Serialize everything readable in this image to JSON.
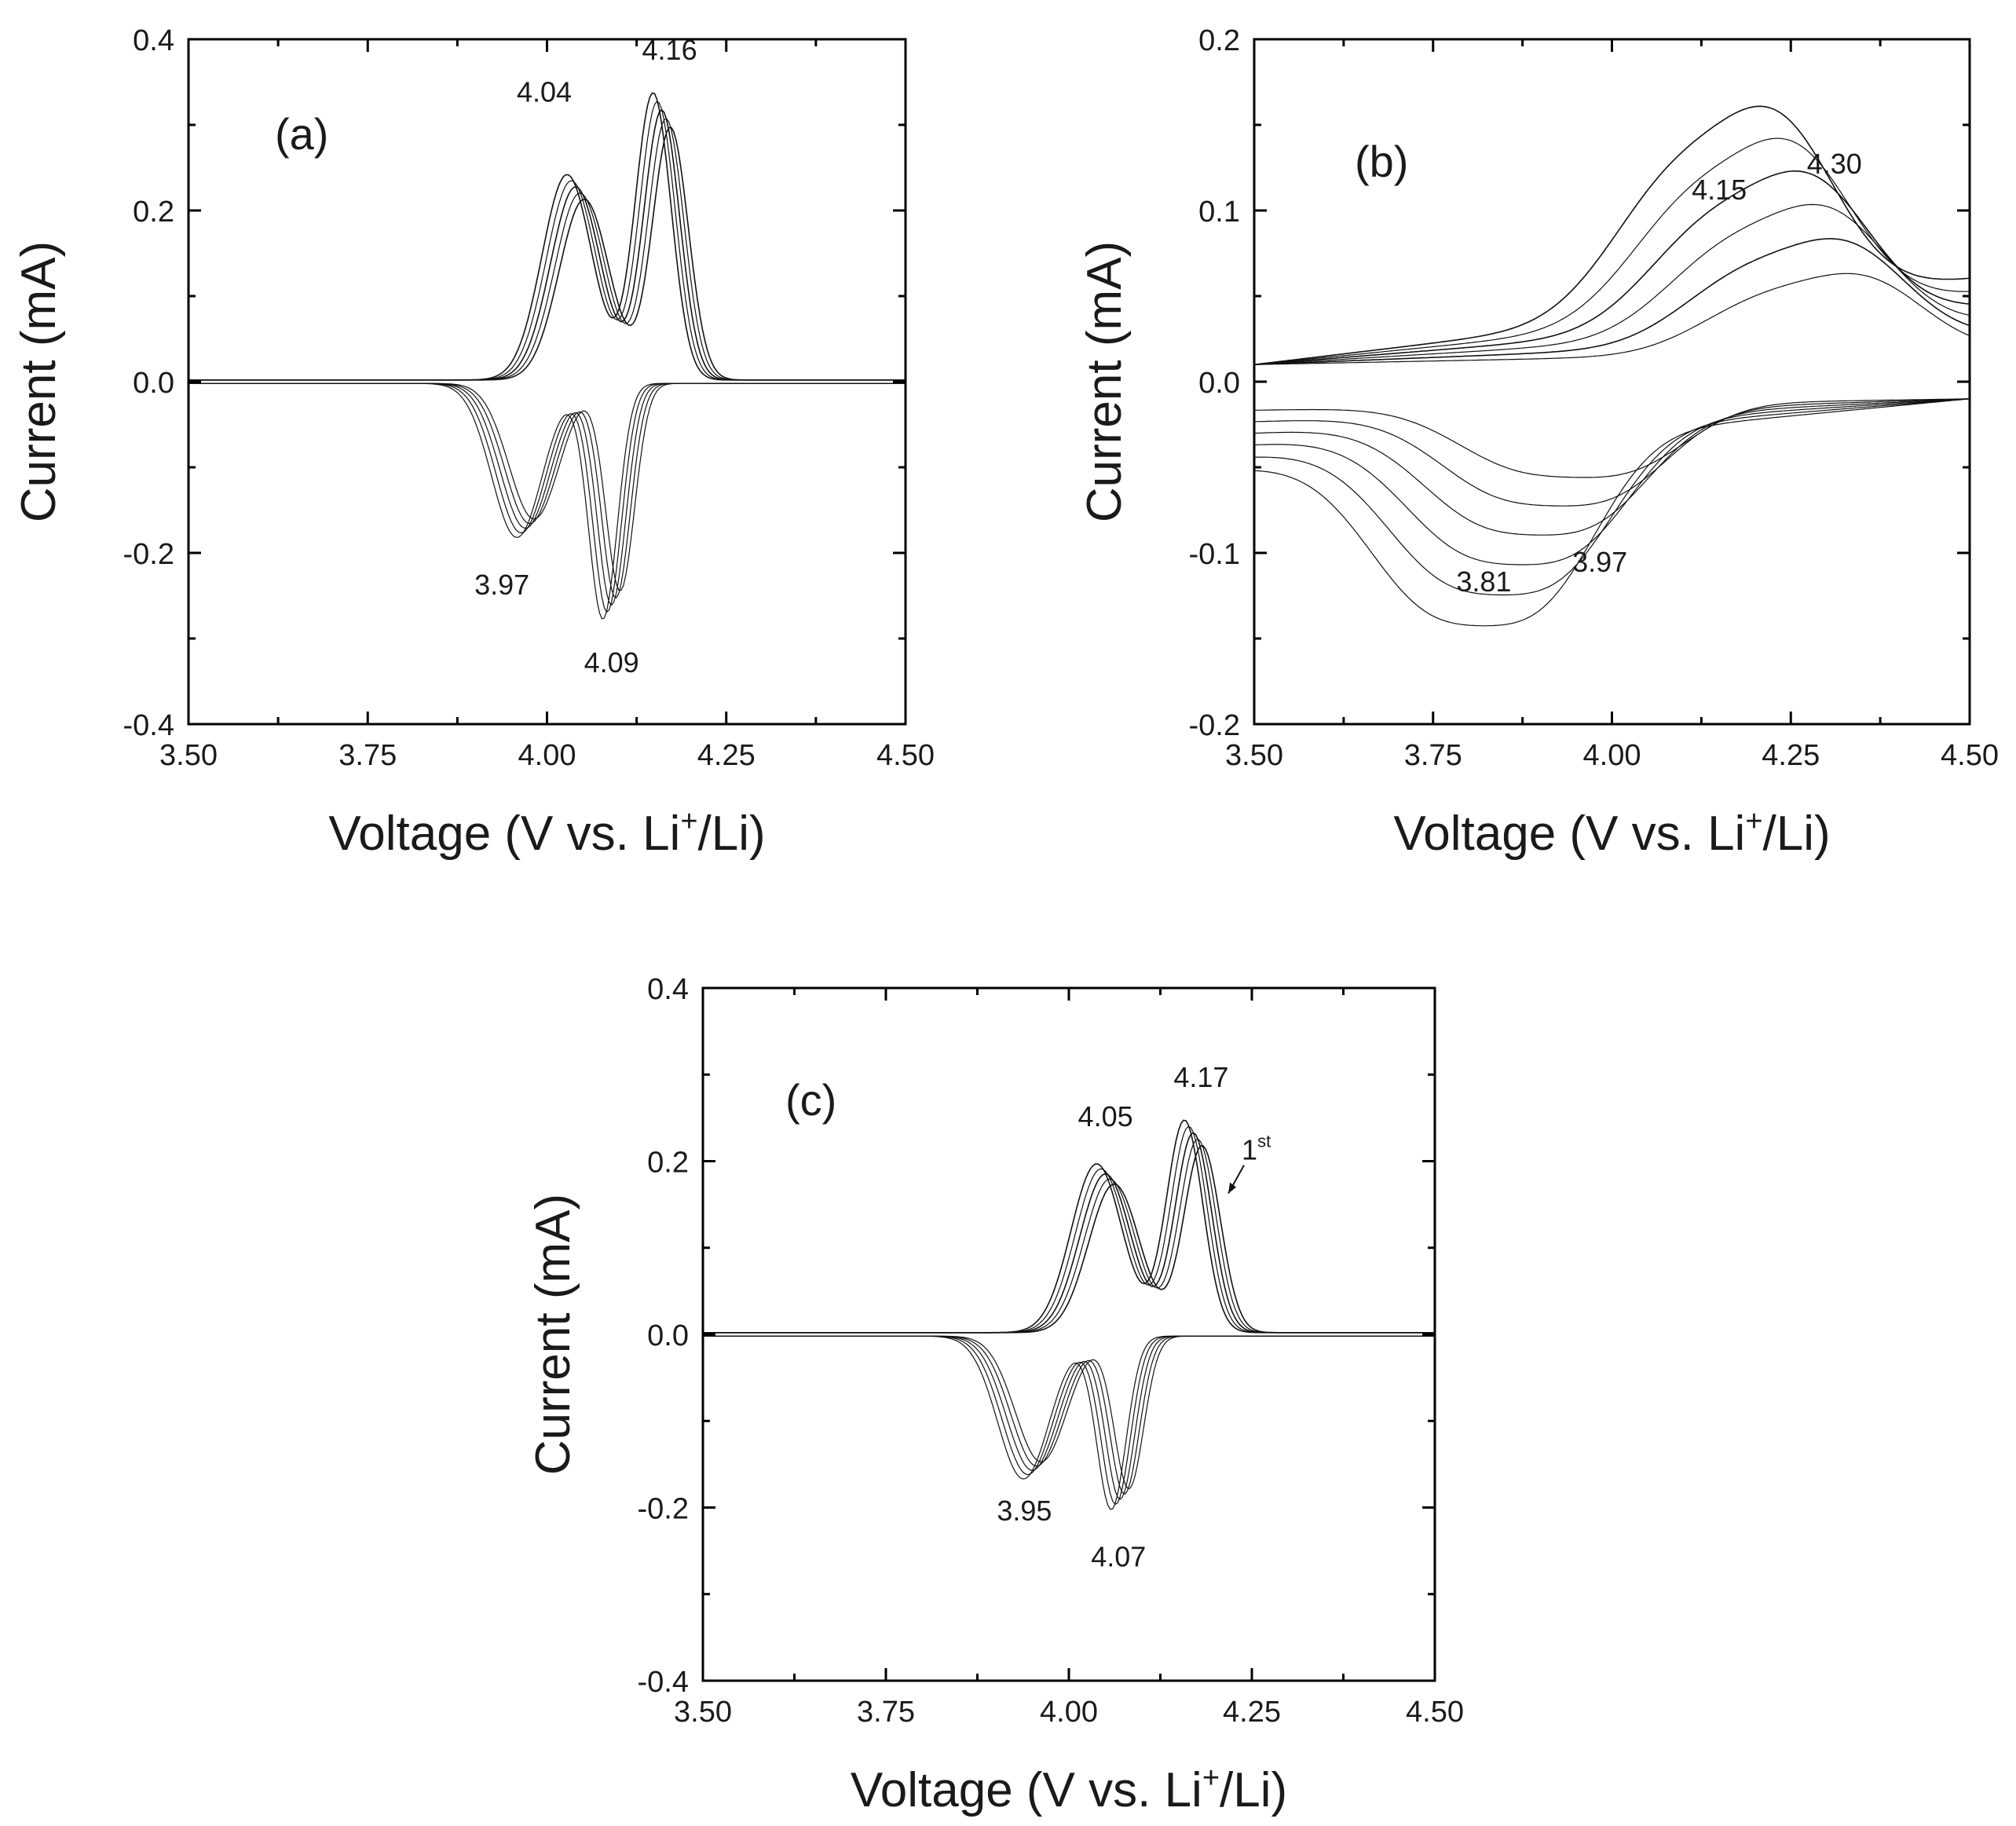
{
  "chart_data": [
    {
      "type": "line",
      "panel_label": "(a)",
      "xlabel": "Voltage (V vs. Li",
      "xlabel_sup": "+",
      "xlabel_tail": "/Li)",
      "ylabel": "Current (mA)",
      "xlim": [
        3.5,
        4.5
      ],
      "ylim": [
        -0.4,
        0.4
      ],
      "xticks": [
        "3.50",
        "3.75",
        "4.00",
        "4.25",
        "4.50"
      ],
      "yticks": [
        "-0.4",
        "-0.2",
        "0.0",
        "0.2",
        "0.4"
      ],
      "anodic_peaks": [
        {
          "label": "4.04",
          "x": 4.04,
          "y": 0.24
        },
        {
          "label": "4.16",
          "x": 4.16,
          "y": 0.335
        }
      ],
      "cathodic_peaks": [
        {
          "label": "3.97",
          "x": 3.97,
          "y": -0.18
        },
        {
          "label": "4.09",
          "x": 4.09,
          "y": -0.275
        }
      ],
      "cycles": 5
    },
    {
      "type": "line",
      "panel_label": "(b)",
      "xlabel": "Voltage (V vs. Li",
      "xlabel_sup": "+",
      "xlabel_tail": "/Li)",
      "ylabel": "Current (mA)",
      "xlim": [
        3.5,
        4.5
      ],
      "ylim": [
        -0.2,
        0.2
      ],
      "xticks": [
        "3.50",
        "3.75",
        "4.00",
        "4.25",
        "4.50"
      ],
      "yticks": [
        "-0.2",
        "-0.1",
        "0.0",
        "0.1",
        "0.2"
      ],
      "anodic_peaks": [
        {
          "label": "4.15",
          "x": 4.15,
          "y": 0.088
        },
        {
          "label": "4.30",
          "x": 4.3,
          "y": 0.101
        }
      ],
      "cathodic_peaks": [
        {
          "label": "3.81",
          "x": 3.81,
          "y": -0.095
        },
        {
          "label": "3.97",
          "x": 3.97,
          "y": -0.088
        }
      ],
      "cycles": 6
    },
    {
      "type": "line",
      "panel_label": "(c)",
      "xlabel": "Voltage (V vs. Li",
      "xlabel_sup": "+",
      "xlabel_tail": "/Li)",
      "ylabel": "Current (mA)",
      "xlim": [
        3.5,
        4.5
      ],
      "ylim": [
        -0.4,
        0.4
      ],
      "xticks": [
        "3.50",
        "3.75",
        "4.00",
        "4.25",
        "4.50"
      ],
      "yticks": [
        "-0.4",
        "-0.2",
        "0.0",
        "0.2",
        "0.4"
      ],
      "anodic_peaks": [
        {
          "label": "4.05",
          "x": 4.05,
          "y": 0.195
        },
        {
          "label": "4.17",
          "x": 4.17,
          "y": 0.245
        }
      ],
      "cathodic_peaks": [
        {
          "label": "3.95",
          "x": 3.95,
          "y": -0.165
        },
        {
          "label": "4.07",
          "x": 4.07,
          "y": -0.2
        }
      ],
      "first_cycle_label": "1",
      "first_cycle_sup": "st",
      "cycles": 5
    }
  ]
}
